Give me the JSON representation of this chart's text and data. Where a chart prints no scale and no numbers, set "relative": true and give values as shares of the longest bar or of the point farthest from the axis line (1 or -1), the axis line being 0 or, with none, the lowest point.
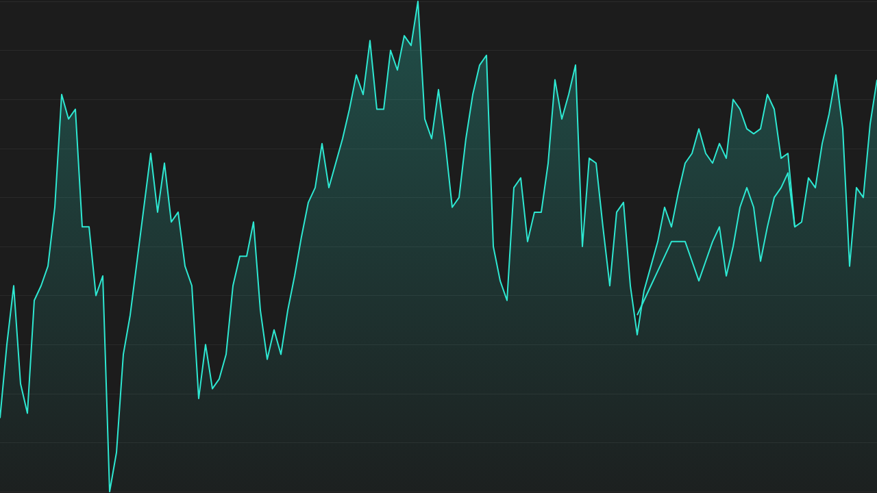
{
  "chart_data": {
    "type": "area",
    "relative": true,
    "grid": "y",
    "line_style": "solid",
    "marker": "none",
    "categories": [
      null,
      null,
      null,
      null,
      null,
      null,
      null,
      null,
      null,
      null,
      null,
      null,
      null,
      null,
      null,
      null,
      null,
      null,
      null,
      null,
      null,
      null,
      null,
      null,
      null,
      null,
      null,
      null,
      null,
      null,
      null,
      null,
      null,
      null,
      null,
      null,
      null,
      null,
      null,
      null,
      null,
      null,
      null,
      null,
      null,
      null,
      null,
      null,
      null,
      null,
      null,
      null,
      null,
      null,
      null,
      null,
      null,
      null,
      null,
      null,
      null,
      null,
      null,
      null,
      null,
      null,
      null,
      null,
      null,
      null,
      null,
      null,
      null,
      null,
      null,
      null,
      null,
      null,
      null,
      null,
      null,
      null,
      null,
      null,
      null,
      null,
      null,
      null,
      null,
      null,
      null,
      null,
      null,
      null,
      null,
      null,
      null,
      null,
      null,
      null,
      null,
      null,
      null,
      null,
      null,
      null,
      null,
      null,
      null,
      null,
      null,
      null,
      null,
      null,
      null,
      null,
      null,
      null,
      null,
      null,
      null,
      null,
      null,
      null,
      null,
      null,
      null,
      null,
      null
    ],
    "series": [
      {
        "color": "#2ee8d2",
        "values": [
          0.15,
          0.3,
          0.42,
          0.22,
          0.16,
          0.39,
          0.42,
          0.46,
          0.58,
          0.81,
          0.76,
          0.78,
          0.54,
          0.54,
          0.4,
          0.44,
          0,
          0.08,
          0.28,
          0.36,
          0.47,
          0.58,
          0.69,
          0.57,
          0.67,
          0.55,
          0.57,
          0.46,
          0.42,
          0.19,
          0.3,
          0.21,
          0.23,
          0.28,
          0.42,
          0.48,
          0.48,
          0.55,
          0.37,
          0.27,
          0.33,
          0.28,
          0.37,
          0.44,
          0.52,
          0.59,
          0.62,
          0.71,
          0.62,
          0.67,
          0.72,
          0.78,
          0.85,
          0.81,
          0.92,
          0.78,
          0.78,
          0.9,
          0.86,
          0.93,
          0.91,
          1,
          0.76,
          0.72,
          0.82,
          0.71,
          0.58,
          0.6,
          0.72,
          0.81,
          0.87,
          0.89,
          0.5,
          0.43,
          0.39,
          0.62,
          0.64,
          0.51,
          0.57,
          0.57,
          0.67,
          0.84,
          0.76,
          0.81,
          0.87,
          0.5,
          0.68,
          0.67,
          0.54,
          0.42,
          0.57,
          0.59,
          0.42,
          0.32,
          0.41,
          0.46,
          0.51,
          0.58,
          0.54,
          0.61,
          0.67,
          0.69,
          0.74,
          0.69,
          0.67,
          0.71,
          0.68,
          0.8,
          0.78,
          0.74,
          0.73,
          0.74,
          0.81,
          0.78,
          0.68,
          0.69,
          0.54,
          0.55,
          0.64,
          0.62,
          0.71,
          0.77,
          0.85,
          0.74,
          0.46,
          0.62,
          0.6,
          0.75,
          0.84
        ]
      },
      {
        "type": "line",
        "color": "#2ee8d2",
        "values": [
          null,
          null,
          null,
          null,
          null,
          null,
          null,
          null,
          null,
          null,
          null,
          null,
          null,
          null,
          null,
          null,
          null,
          null,
          null,
          null,
          null,
          null,
          null,
          null,
          null,
          null,
          null,
          null,
          null,
          null,
          null,
          null,
          null,
          null,
          null,
          null,
          null,
          null,
          null,
          null,
          null,
          null,
          null,
          null,
          null,
          null,
          null,
          null,
          null,
          null,
          null,
          null,
          null,
          null,
          null,
          null,
          null,
          null,
          null,
          null,
          null,
          null,
          null,
          null,
          null,
          null,
          null,
          null,
          null,
          null,
          null,
          null,
          null,
          null,
          null,
          null,
          null,
          null,
          null,
          null,
          null,
          null,
          null,
          null,
          null,
          null,
          null,
          null,
          null,
          null,
          null,
          null,
          null,
          0.36,
          0.39,
          0.42,
          0.45,
          0.48,
          0.51,
          0.51,
          0.51,
          0.47,
          0.43,
          0.47,
          0.51,
          0.54,
          0.44,
          0.5,
          0.58,
          0.62,
          0.58,
          0.47,
          0.54,
          0.6,
          0.62,
          0.65,
          0.54,
          null,
          null,
          null,
          null,
          null,
          null,
          null,
          null,
          null,
          null,
          null,
          null
        ]
      }
    ]
  }
}
